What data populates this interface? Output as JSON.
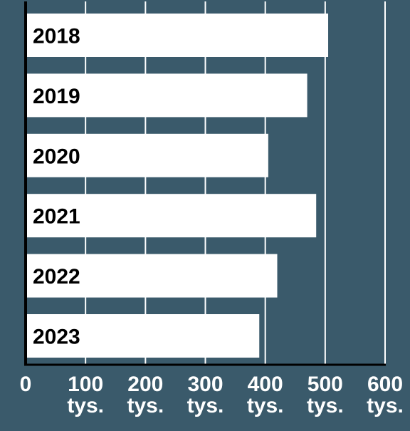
{
  "colors": {
    "background": "#3a5a6b",
    "bar": "#ffffff",
    "axis": "#000000",
    "grid": "#ffffff",
    "category_text": "#000000",
    "tick_text": "#ffffff"
  },
  "chart_data": {
    "type": "bar",
    "orientation": "horizontal",
    "categories": [
      "2018",
      "2019",
      "2020",
      "2021",
      "2022",
      "2023"
    ],
    "values": [
      505,
      470,
      405,
      485,
      420,
      390
    ],
    "xlim": [
      0,
      600
    ],
    "x_ticks": [
      0,
      100,
      200,
      300,
      400,
      500,
      600
    ],
    "x_tick_labels": [
      {
        "value": "0",
        "unit": ""
      },
      {
        "value": "100",
        "unit": "tys."
      },
      {
        "value": "200",
        "unit": "tys."
      },
      {
        "value": "300",
        "unit": "tys."
      },
      {
        "value": "400",
        "unit": "tys."
      },
      {
        "value": "500",
        "unit": "tys."
      },
      {
        "value": "600",
        "unit": "tys."
      }
    ],
    "grid": true,
    "legend": "none"
  }
}
